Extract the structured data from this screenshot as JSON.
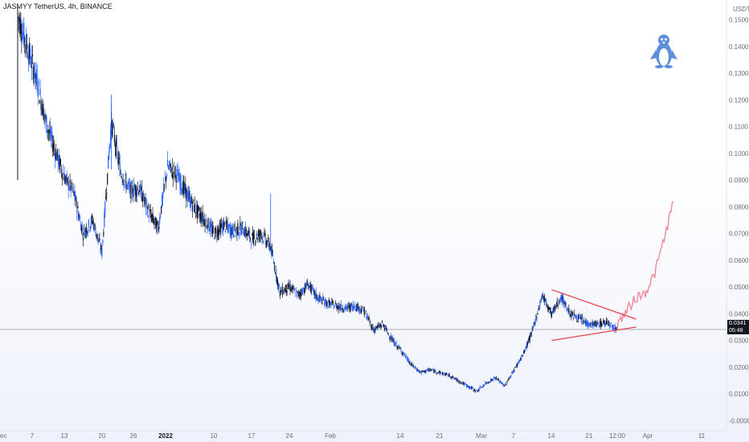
{
  "header": {
    "title": "JASMYY TetherUS, 4h, BINANCE"
  },
  "axis": {
    "unit_label": "USDT"
  },
  "price_tag": {
    "price": "0.0341",
    "countdown": "05:48"
  },
  "logo": {
    "icon": "penguin-icon"
  },
  "colors": {
    "bull": "#2962ff",
    "bear": "#131722",
    "trend": "#e8404b",
    "projection": "#f08a98",
    "price_line": "#9598a1"
  },
  "chart_data": {
    "type": "line",
    "title": "JASMYY TetherUS, 4h, BINANCE",
    "xlabel": "",
    "ylabel": "USDT",
    "ylim": [
      -0.002,
      0.155
    ],
    "x_ticks": [
      "ec",
      "7",
      "13",
      "20",
      "26",
      "2022",
      "10",
      "17",
      "24",
      "Feb",
      "14",
      "21",
      "Mar",
      "7",
      "14",
      "21",
      "12:00",
      "Apr",
      "11"
    ],
    "y_ticks": [
      "0.1500",
      "0.1400",
      "0.1300",
      "0.1200",
      "0.1100",
      "0.1000",
      "0.0900",
      "0.0800",
      "0.0700",
      "0.0600",
      "0.0500",
      "0.0400",
      "0.0300",
      "0.0200",
      "0.0100",
      "-0.0000"
    ],
    "y_tick_values": [
      0.15,
      0.14,
      0.13,
      0.12,
      0.11,
      0.1,
      0.09,
      0.08,
      0.07,
      0.06,
      0.05,
      0.04,
      0.03,
      0.02,
      0.01,
      0.0
    ],
    "series": [
      {
        "values": [
          {
            "x": 0,
            "y": 0.152
          },
          {
            "x": 1,
            "y": 0.14
          },
          {
            "x": 2,
            "y": 0.128
          },
          {
            "x": 3,
            "y": 0.112
          },
          {
            "x": 4,
            "y": 0.101
          },
          {
            "x": 5,
            "y": 0.091
          },
          {
            "x": 6,
            "y": 0.085
          },
          {
            "x": 7,
            "y": 0.07
          },
          {
            "x": 8,
            "y": 0.075
          },
          {
            "x": 9,
            "y": 0.063
          },
          {
            "x": 10,
            "y": 0.112
          },
          {
            "x": 11,
            "y": 0.093
          },
          {
            "x": 12,
            "y": 0.086
          },
          {
            "x": 13,
            "y": 0.087
          },
          {
            "x": 14,
            "y": 0.078
          },
          {
            "x": 15,
            "y": 0.072
          },
          {
            "x": 16,
            "y": 0.095
          },
          {
            "x": 17,
            "y": 0.092
          },
          {
            "x": 18,
            "y": 0.085
          },
          {
            "x": 19,
            "y": 0.079
          },
          {
            "x": 20,
            "y": 0.075
          },
          {
            "x": 21,
            "y": 0.07
          },
          {
            "x": 22,
            "y": 0.073
          },
          {
            "x": 23,
            "y": 0.071
          },
          {
            "x": 24,
            "y": 0.072
          },
          {
            "x": 25,
            "y": 0.068
          },
          {
            "x": 26,
            "y": 0.07
          },
          {
            "x": 27,
            "y": 0.065
          },
          {
            "x": 28,
            "y": 0.048
          },
          {
            "x": 29,
            "y": 0.05
          },
          {
            "x": 30,
            "y": 0.047
          },
          {
            "x": 31,
            "y": 0.051
          },
          {
            "x": 32,
            "y": 0.046
          },
          {
            "x": 33,
            "y": 0.044
          },
          {
            "x": 34,
            "y": 0.043
          },
          {
            "x": 35,
            "y": 0.042
          },
          {
            "x": 36,
            "y": 0.043
          },
          {
            "x": 37,
            "y": 0.041
          },
          {
            "x": 38,
            "y": 0.034
          },
          {
            "x": 39,
            "y": 0.036
          },
          {
            "x": 40,
            "y": 0.03
          },
          {
            "x": 41,
            "y": 0.026
          },
          {
            "x": 42,
            "y": 0.021
          },
          {
            "x": 43,
            "y": 0.018
          },
          {
            "x": 44,
            "y": 0.019
          },
          {
            "x": 45,
            "y": 0.018
          },
          {
            "x": 46,
            "y": 0.017
          },
          {
            "x": 47,
            "y": 0.015
          },
          {
            "x": 48,
            "y": 0.013
          },
          {
            "x": 49,
            "y": 0.011
          },
          {
            "x": 50,
            "y": 0.014
          },
          {
            "x": 51,
            "y": 0.016
          },
          {
            "x": 52,
            "y": 0.013
          },
          {
            "x": 53,
            "y": 0.019
          },
          {
            "x": 54,
            "y": 0.025
          },
          {
            "x": 55,
            "y": 0.034
          },
          {
            "x": 56,
            "y": 0.047
          },
          {
            "x": 57,
            "y": 0.04
          },
          {
            "x": 58,
            "y": 0.046
          },
          {
            "x": 59,
            "y": 0.04
          },
          {
            "x": 60,
            "y": 0.038
          },
          {
            "x": 61,
            "y": 0.036
          },
          {
            "x": 62,
            "y": 0.036
          },
          {
            "x": 63,
            "y": 0.037
          },
          {
            "x": 64,
            "y": 0.034
          }
        ]
      },
      {
        "values": [
          {
            "x": 64,
            "y": 0.036
          },
          {
            "x": 65,
            "y": 0.041
          },
          {
            "x": 66,
            "y": 0.046
          },
          {
            "x": 67,
            "y": 0.048
          },
          {
            "x": 68,
            "y": 0.055
          },
          {
            "x": 69,
            "y": 0.068
          },
          {
            "x": 70,
            "y": 0.082
          }
        ]
      }
    ],
    "trendlines": [
      {
        "x1": 57,
        "y1": 0.049,
        "x2": 66,
        "y2": 0.038
      },
      {
        "x1": 57,
        "y1": 0.03,
        "x2": 66,
        "y2": 0.035
      }
    ],
    "price_line": 0.0341
  }
}
